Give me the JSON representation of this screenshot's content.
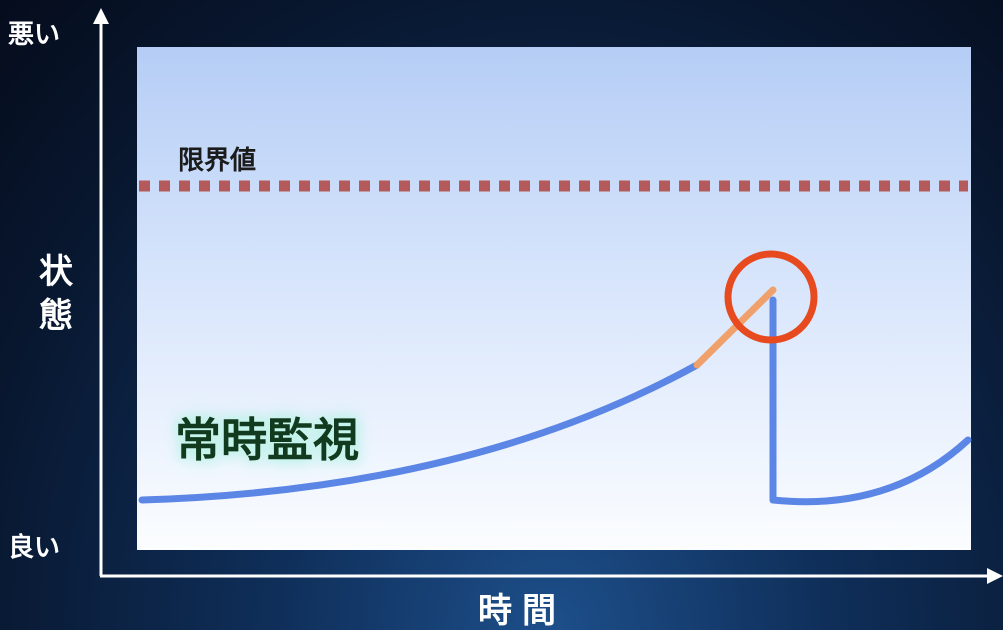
{
  "axis": {
    "y_top_label": "悪い",
    "y_bottom_label": "良い",
    "y_title": "状\n態",
    "x_title": "時間"
  },
  "annotations": {
    "threshold_label": "限界値",
    "curve_label": "常時監視"
  },
  "colors": {
    "curve": "#5b86e5",
    "warning_segment": "#f0a06a",
    "highlight_circle": "#e84a1f",
    "threshold_line": "#b55a5a"
  }
}
